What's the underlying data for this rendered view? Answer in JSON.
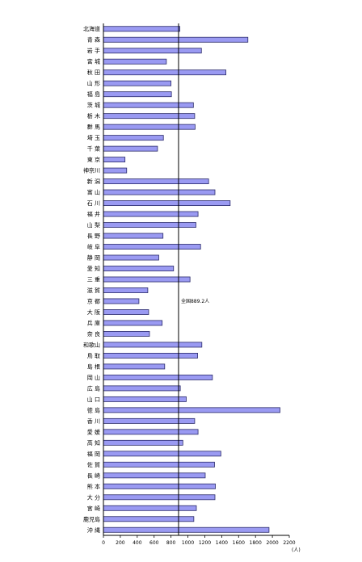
{
  "chart_data": {
    "type": "bar",
    "orientation": "horizontal",
    "categories": [
      "北海道",
      "青 森",
      "岩 手",
      "宮 城",
      "秋 田",
      "山 形",
      "福 島",
      "茨 城",
      "栃 木",
      "群 馬",
      "埼 玉",
      "千 葉",
      "東 京",
      "神奈川",
      "新 潟",
      "富 山",
      "石 川",
      "福 井",
      "山 梨",
      "長 野",
      "岐 阜",
      "静 岡",
      "愛 知",
      "三 重",
      "滋 賀",
      "京 都",
      "大 阪",
      "兵 庫",
      "奈 良",
      "和歌山",
      "鳥 取",
      "島 根",
      "岡 山",
      "広 島",
      "山 口",
      "徳 島",
      "香 川",
      "愛 媛",
      "高 知",
      "福 岡",
      "佐 賀",
      "長 崎",
      "熊 本",
      "大 分",
      "宮 崎",
      "鹿児島",
      "沖 縄"
    ],
    "values": [
      905,
      1710,
      1160,
      745,
      1450,
      800,
      805,
      1065,
      1080,
      1085,
      710,
      640,
      255,
      275,
      1245,
      1320,
      1500,
      1120,
      1095,
      705,
      1150,
      655,
      830,
      1025,
      525,
      420,
      535,
      695,
      545,
      1165,
      1115,
      725,
      1290,
      910,
      980,
      2090,
      1080,
      1120,
      940,
      1390,
      1315,
      1205,
      1325,
      1320,
      1100,
      1070,
      1960
    ],
    "xticks": [
      "0",
      "200",
      "400",
      "600",
      "800",
      "1000",
      "1200",
      "1400",
      "1600",
      "1800",
      "2000",
      "2200"
    ],
    "xlim": [
      0,
      2200
    ],
    "unit": "(人)",
    "reference": {
      "value": 889.2,
      "label": "全国889.2人"
    },
    "colors": {
      "bar": "#9a9af2",
      "bar_edge": "#2a2a6a"
    }
  }
}
